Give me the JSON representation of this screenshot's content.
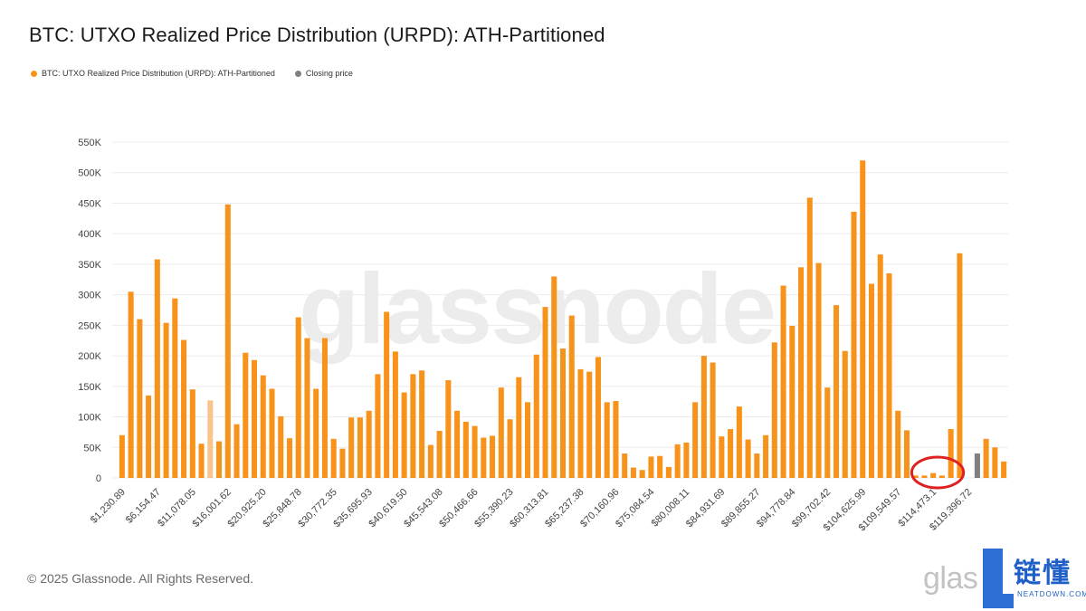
{
  "title": "BTC: UTXO Realized Price Distribution (URPD): ATH-Partitioned",
  "legend": [
    {
      "label": "BTC: UTXO Realized Price Distribution (URPD): ATH-Partitioned",
      "color": "#f7931a"
    },
    {
      "label": "Closing price",
      "color": "#777777"
    }
  ],
  "watermark": "glassnode",
  "footer": "© 2025 Glassnode. All Rights Reserved.",
  "brand_logo": {
    "glas": "glas",
    "cn": "链懂",
    "en": "NEATDOWN.COM"
  },
  "colors": {
    "bar": "#f7931a",
    "highlight": "#f8c48a",
    "closing": "#808080",
    "grid": "#ebebeb",
    "annotation": "#e02020"
  },
  "chart_data": {
    "type": "bar",
    "title": "BTC: UTXO Realized Price Distribution (URPD): ATH-Partitioned",
    "xlabel": "",
    "ylabel": "",
    "ylim": [
      0,
      550000
    ],
    "yticks": [
      "0",
      "50K",
      "100K",
      "150K",
      "200K",
      "250K",
      "300K",
      "350K",
      "400K",
      "450K",
      "500K",
      "550K"
    ],
    "xticks": [
      "$1,230.89",
      "$6,154.47",
      "$11,078.05",
      "$16,001.62",
      "$20,925.20",
      "$25,848.78",
      "$30,772.35",
      "$35,695.93",
      "$40,619.50",
      "$45,543.08",
      "$50,466.66",
      "$55,390.23",
      "$60,313.81",
      "$65,237.38",
      "$70,160.96",
      "$75,084.54",
      "$80,008.11",
      "$84,931.69",
      "$89,855.27",
      "$94,778.84",
      "$99,702.42",
      "$104,625.99",
      "$109,549.57",
      "$114,473.1",
      "$119,396.72"
    ],
    "xtick_every": 4,
    "highlight_index": 10,
    "closing_index": 97,
    "annotation": {
      "type": "circle",
      "around_indices": [
        91,
        92,
        93,
        94
      ]
    },
    "series": [
      {
        "name": "BTC: UTXO Realized Price Distribution (URPD): ATH-Partitioned",
        "values": [
          70000,
          305000,
          260000,
          135000,
          358000,
          254000,
          294000,
          226000,
          145000,
          56000,
          127000,
          60000,
          448000,
          88000,
          205000,
          193000,
          168000,
          146000,
          101000,
          65000,
          263000,
          229000,
          146000,
          229000,
          64000,
          48000,
          99000,
          99000,
          110000,
          170000,
          272000,
          207000,
          140000,
          170000,
          176000,
          54000,
          77000,
          160000,
          110000,
          92000,
          85000,
          66000,
          69000,
          148000,
          96000,
          165000,
          124000,
          202000,
          280000,
          330000,
          212000,
          266000,
          178000,
          174000,
          198000,
          124000,
          126000,
          40000,
          17000,
          13000,
          35000,
          36000,
          18000,
          55000,
          58000,
          124000,
          200000,
          189000,
          68000,
          80000,
          117000,
          63000,
          40000,
          70000,
          222000,
          315000,
          249000,
          345000,
          459000,
          352000,
          148000,
          283000,
          208000,
          436000,
          520000,
          318000,
          366000,
          335000,
          110000,
          78000,
          4000,
          4000,
          8000,
          4000,
          80000,
          368000,
          0,
          40000,
          64000,
          50000,
          27000
        ]
      }
    ]
  }
}
